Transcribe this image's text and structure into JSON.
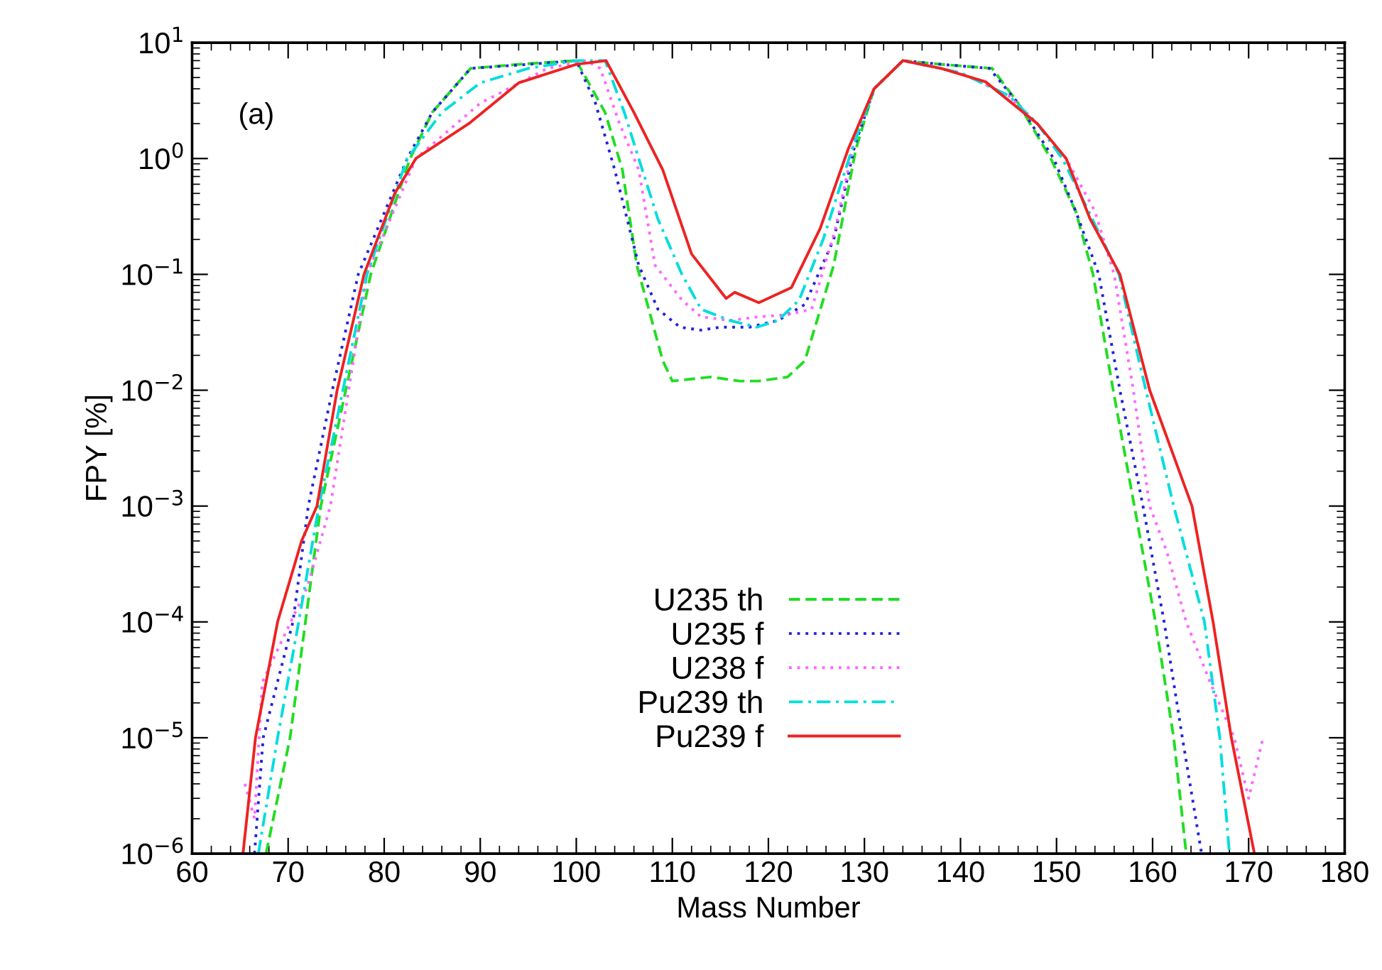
{
  "chart_data": {
    "type": "line",
    "xlabel": "Mass Number",
    "ylabel": "FPY [%]",
    "log": "y",
    "xlim": [
      60,
      180
    ],
    "xticks": [
      60,
      70,
      80,
      90,
      100,
      110,
      120,
      130,
      140,
      150,
      160,
      170,
      180
    ],
    "ylim": [
      1e-06,
      10
    ],
    "yticks": [
      {
        "value": 1e-06,
        "label": "10$^{−6}$"
      },
      {
        "value": 1e-05,
        "label": "10$^{−5}$"
      },
      {
        "value": 0.0001,
        "label": "10$^{−4}$"
      },
      {
        "value": 0.001,
        "label": "10$^{−3}$"
      },
      {
        "value": 0.01,
        "label": "10$^{−2}$"
      },
      {
        "value": 0.1,
        "label": "10$^{−1}$"
      },
      {
        "value": 1,
        "label": "10$^{0}$"
      },
      {
        "value": 10,
        "label": "10$^{1}$"
      }
    ],
    "grid": false,
    "legend": "bottom",
    "marker": "none",
    "annotations": [
      "(a)"
    ],
    "series": [
      {
        "name": "U235 th",
        "color": "#22dd22",
        "line_style": "dashed",
        "x": [
          67.7,
          70.2,
          71.8,
          73.4,
          76,
          78.6,
          82.7,
          85,
          89,
          94,
          100,
          103,
          104.8,
          106.3,
          109,
          110,
          114,
          117,
          119,
          122,
          123.8,
          126.8,
          129.1,
          131,
          134,
          138,
          143.3,
          146,
          149.4,
          152,
          153.8,
          155.9,
          158.1,
          160.3,
          162.2,
          163.5
        ],
        "values": [
          1e-06,
          1e-05,
          0.0001,
          0.001,
          0.01,
          0.1,
          1,
          2.5,
          6,
          6.5,
          7,
          2.5,
          0.8,
          0.12,
          0.018,
          0.012,
          0.013,
          0.012,
          0.012,
          0.013,
          0.018,
          0.12,
          1.2,
          4,
          7,
          6.5,
          6,
          3,
          1,
          0.35,
          0.1,
          0.01,
          0.001,
          0.0001,
          1e-05,
          1e-06
        ]
      },
      {
        "name": "U235 f",
        "color": "#2222dd",
        "line_style": "dotted",
        "x": [
          66.5,
          67.4,
          70.5,
          72.1,
          74.6,
          77.3,
          82.4,
          85,
          89,
          95,
          100,
          102,
          104,
          106.5,
          108.5,
          110.8,
          113,
          115,
          118,
          121,
          123.8,
          126.8,
          129,
          131,
          134,
          138,
          143,
          146,
          149.7,
          152,
          154.4,
          156.6,
          159,
          161.2,
          163.1,
          165.1
        ],
        "values": [
          1e-06,
          1e-05,
          0.0001,
          0.001,
          0.01,
          0.1,
          1,
          2.5,
          6,
          6.5,
          7,
          3,
          0.8,
          0.12,
          0.05,
          0.035,
          0.033,
          0.035,
          0.035,
          0.04,
          0.055,
          0.2,
          1.3,
          4,
          7,
          6.5,
          6,
          3,
          1,
          0.35,
          0.1,
          0.01,
          0.001,
          0.0001,
          1e-05,
          1e-06
        ]
      },
      {
        "name": "U238 f",
        "color": "#ff66ff",
        "line_style": "dotted",
        "x": [
          65.5,
          66.5,
          67.3,
          69,
          72,
          74.4,
          76.3,
          78.2,
          83.3,
          90,
          97,
          101,
          102.5,
          104.5,
          106.5,
          108.2,
          111,
          113,
          116,
          119,
          122,
          124.5,
          127,
          129,
          131,
          134,
          140,
          145,
          148,
          151,
          154,
          156,
          158,
          159.7,
          161.5,
          163.5,
          166,
          168.5,
          170,
          171.5
        ],
        "values": [
          4e-06,
          2e-06,
          3e-05,
          6e-05,
          0.0002,
          0.001,
          0.01,
          0.1,
          1,
          3,
          6,
          7,
          6,
          2,
          0.8,
          0.12,
          0.06,
          0.043,
          0.04,
          0.043,
          0.045,
          0.05,
          0.25,
          1.5,
          4,
          7,
          5.5,
          3.5,
          2,
          1,
          0.35,
          0.1,
          0.01,
          0.001,
          0.0004,
          0.0001,
          3e-05,
          1e-05,
          3e-06,
          1e-05
        ]
      },
      {
        "name": "Pu239 th",
        "color": "#00dddd",
        "line_style": "dashdot",
        "x": [
          66.9,
          68.9,
          71.1,
          73.2,
          75.7,
          78.2,
          82.4,
          86,
          90,
          95,
          100,
          103,
          105,
          106.5,
          108.5,
          111,
          113,
          116,
          118.8,
          121,
          123.2,
          125.7,
          128.7,
          131,
          134,
          140,
          145,
          148,
          150.6,
          153,
          156.5,
          159.3,
          162.2,
          165.4,
          167,
          168
        ],
        "values": [
          1e-06,
          1e-05,
          0.0001,
          0.001,
          0.01,
          0.1,
          1,
          2.5,
          4.5,
          6,
          7,
          7,
          2.5,
          1,
          0.3,
          0.1,
          0.05,
          0.04,
          0.035,
          0.04,
          0.06,
          0.2,
          1.2,
          4,
          7,
          5.5,
          3.5,
          2,
          1,
          0.4,
          0.1,
          0.01,
          0.001,
          0.0001,
          1e-05,
          1e-06
        ]
      },
      {
        "name": "Pu239 f",
        "color": "#ee2222",
        "line_style": "solid",
        "x": [
          65.3,
          66.6,
          68.9,
          71.4,
          73,
          75.1,
          77.9,
          81.1,
          83.3,
          88.8,
          94,
          100,
          103.1,
          106,
          109,
          112,
          115.6,
          116.5,
          119,
          122.4,
          125.4,
          128.3,
          131,
          134,
          138,
          142.6,
          148,
          151,
          153.5,
          156.6,
          159.7,
          162,
          164.1,
          166.3,
          168.2,
          170.6
        ],
        "values": [
          1e-06,
          1e-05,
          0.0001,
          0.0005,
          0.001,
          0.01,
          0.1,
          0.5,
          1,
          2,
          4.5,
          6.5,
          7,
          2.5,
          0.8,
          0.15,
          0.062,
          0.07,
          0.057,
          0.077,
          0.25,
          1.2,
          4,
          7,
          6,
          4.6,
          2,
          1,
          0.3,
          0.1,
          0.01,
          0.003,
          0.001,
          0.0001,
          1e-05,
          1e-06
        ]
      }
    ]
  }
}
